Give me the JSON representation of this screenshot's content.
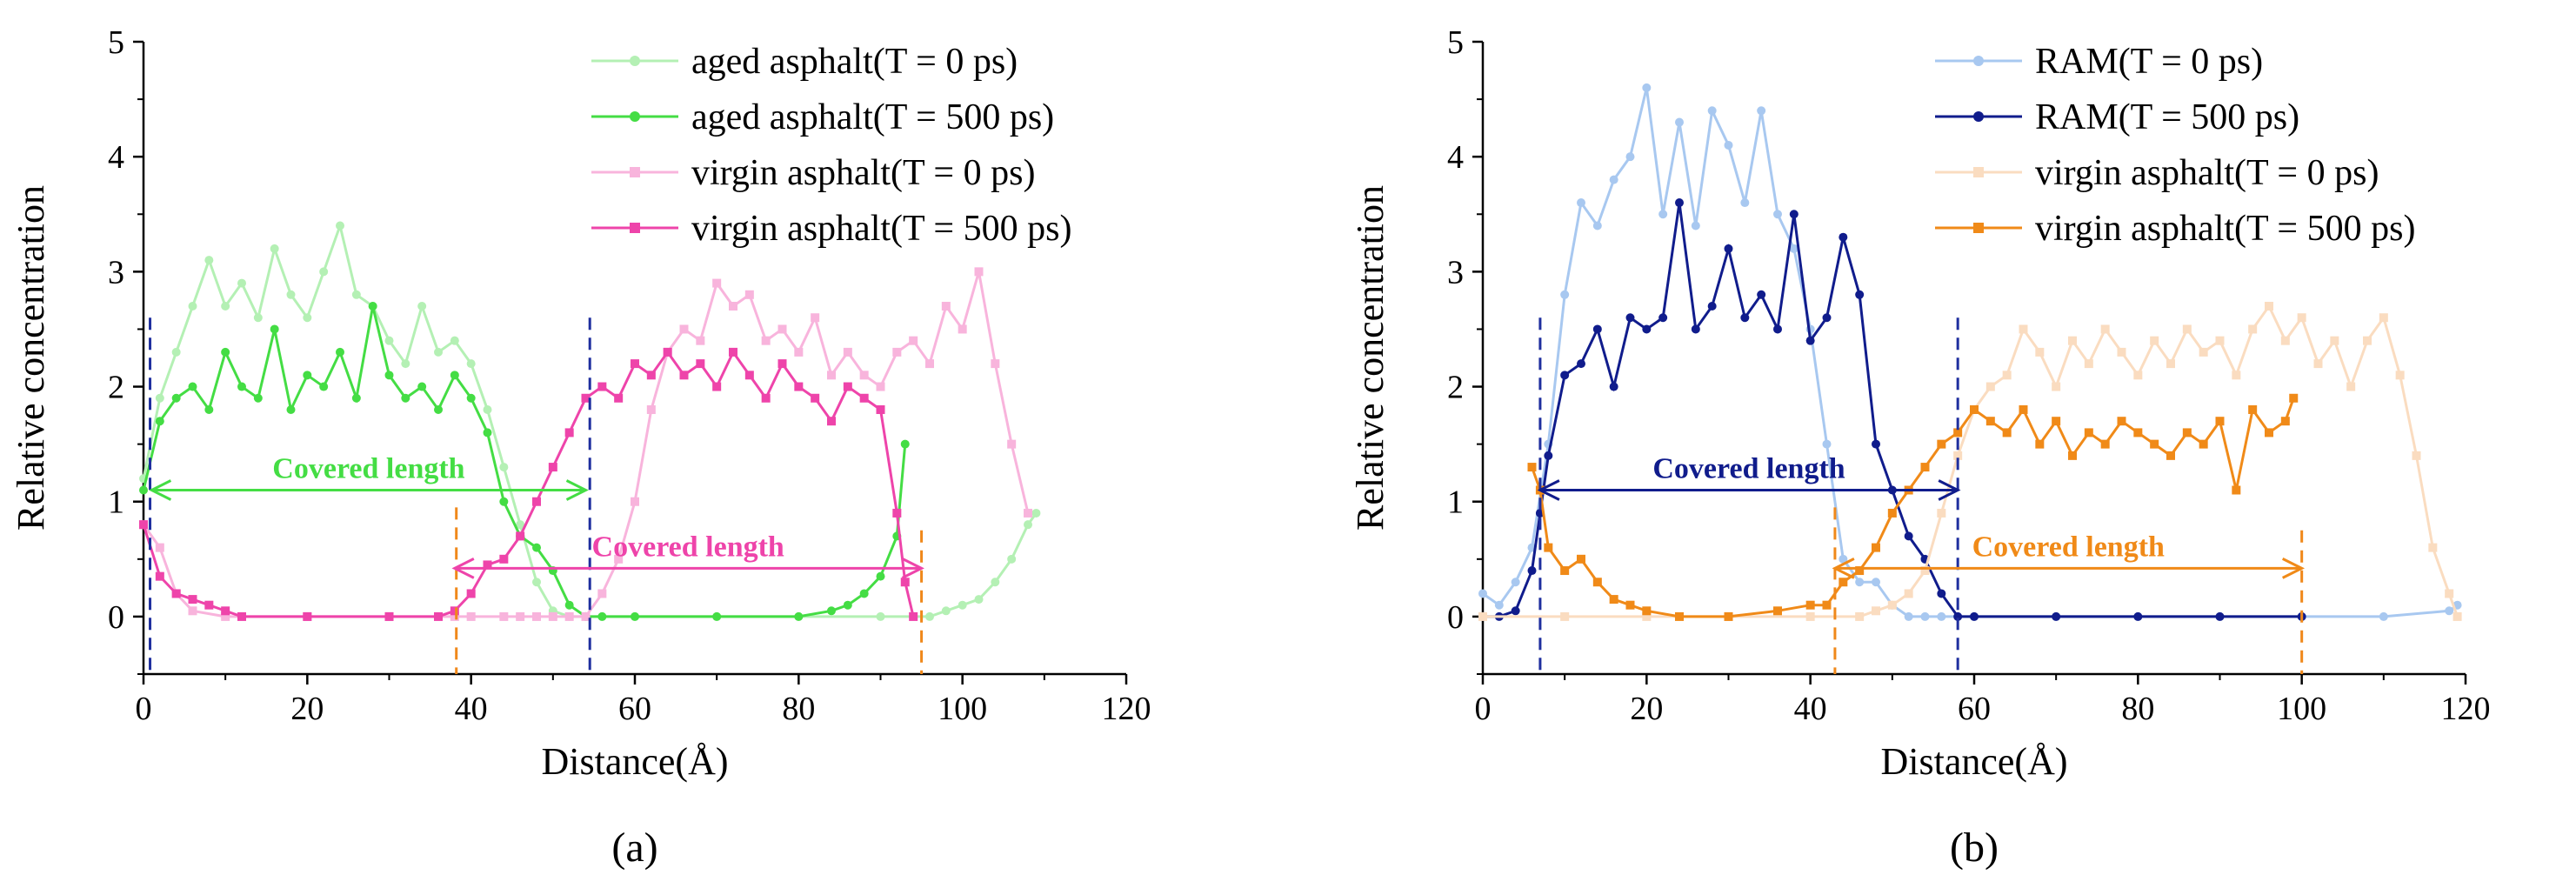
{
  "chart_data": [
    {
      "type": "line",
      "panel_label": "(a)",
      "xlabel": "Distance(Å)",
      "ylabel": "Relative concentration",
      "xlim": [
        0,
        120
      ],
      "ylim": [
        -0.5,
        5
      ],
      "xticks": [
        0,
        20,
        40,
        60,
        80,
        100,
        120
      ],
      "yticks": [
        0,
        1,
        2,
        3,
        4,
        5
      ],
      "legend_position": "top-right",
      "series": [
        {
          "name": "aged asphalt(T = 0 ps)",
          "color": "#b4f0b4",
          "marker": "circle",
          "x": [
            0,
            2,
            4,
            6,
            8,
            10,
            12,
            14,
            16,
            18,
            20,
            22,
            24,
            26,
            28,
            30,
            32,
            34,
            36,
            38,
            40,
            42,
            44,
            46,
            48,
            50,
            52,
            54,
            56,
            60,
            70,
            80,
            90,
            96,
            98,
            100,
            102,
            104,
            106,
            108,
            109
          ],
          "y": [
            1.2,
            1.9,
            2.3,
            2.7,
            3.1,
            2.7,
            2.9,
            2.6,
            3.2,
            2.8,
            2.6,
            3.0,
            3.4,
            2.8,
            2.7,
            2.4,
            2.2,
            2.7,
            2.3,
            2.4,
            2.2,
            1.8,
            1.3,
            0.8,
            0.3,
            0.05,
            0,
            0,
            0,
            0,
            0,
            0,
            0,
            0,
            0.05,
            0.1,
            0.15,
            0.3,
            0.5,
            0.8,
            0.9
          ]
        },
        {
          "name": "aged asphalt(T = 500 ps)",
          "color": "#44dd44",
          "marker": "circle",
          "x": [
            0,
            2,
            4,
            6,
            8,
            10,
            12,
            14,
            16,
            18,
            20,
            22,
            24,
            26,
            28,
            30,
            32,
            34,
            36,
            38,
            40,
            42,
            44,
            46,
            48,
            50,
            52,
            54,
            56,
            60,
            70,
            80,
            84,
            86,
            88,
            90,
            92,
            93
          ],
          "y": [
            1.1,
            1.7,
            1.9,
            2.0,
            1.8,
            2.3,
            2.0,
            1.9,
            2.5,
            1.8,
            2.1,
            2.0,
            2.3,
            1.9,
            2.7,
            2.1,
            1.9,
            2.0,
            1.8,
            2.1,
            1.9,
            1.6,
            1.0,
            0.7,
            0.6,
            0.4,
            0.1,
            0,
            0,
            0,
            0,
            0,
            0.05,
            0.1,
            0.2,
            0.35,
            0.7,
            1.5
          ]
        },
        {
          "name": "virgin asphalt(T = 0 ps)",
          "color": "#f8b4dc",
          "marker": "square",
          "x": [
            0,
            2,
            4,
            6,
            10,
            20,
            30,
            38,
            40,
            44,
            46,
            48,
            50,
            52,
            54,
            56,
            58,
            60,
            62,
            64,
            66,
            68,
            70,
            72,
            74,
            76,
            78,
            80,
            82,
            84,
            86,
            88,
            90,
            92,
            94,
            96,
            98,
            100,
            102,
            104,
            106,
            108
          ],
          "y": [
            0.8,
            0.6,
            0.2,
            0.05,
            0,
            0,
            0,
            0,
            0,
            0,
            0,
            0,
            0,
            0,
            0,
            0.2,
            0.5,
            1.0,
            1.8,
            2.3,
            2.5,
            2.4,
            2.9,
            2.7,
            2.8,
            2.4,
            2.5,
            2.3,
            2.6,
            2.1,
            2.3,
            2.1,
            2.0,
            2.3,
            2.4,
            2.2,
            2.7,
            2.5,
            3.0,
            2.2,
            1.5,
            0.9
          ]
        },
        {
          "name": "virgin asphalt(T = 500 ps)",
          "color": "#ee44aa",
          "marker": "square",
          "x": [
            0,
            2,
            4,
            6,
            8,
            10,
            12,
            20,
            30,
            36,
            38,
            40,
            42,
            44,
            46,
            48,
            50,
            52,
            54,
            56,
            58,
            60,
            62,
            64,
            66,
            68,
            70,
            72,
            74,
            76,
            78,
            80,
            82,
            84,
            86,
            88,
            90,
            92,
            93,
            94
          ],
          "y": [
            0.8,
            0.35,
            0.2,
            0.15,
            0.1,
            0.05,
            0,
            0,
            0,
            0,
            0.05,
            0.2,
            0.45,
            0.5,
            0.7,
            1.0,
            1.3,
            1.6,
            1.9,
            2.0,
            1.9,
            2.2,
            2.1,
            2.3,
            2.1,
            2.2,
            2.0,
            2.3,
            2.1,
            1.9,
            2.2,
            2.0,
            1.9,
            1.7,
            2.0,
            1.9,
            1.8,
            0.9,
            0.3,
            0
          ]
        }
      ],
      "annotations": [
        {
          "text": "Covered length",
          "color": "#44dd44",
          "x_from": 1,
          "x_to": 54,
          "y": 1.1
        },
        {
          "text": "Covered length",
          "color": "#ee44aa",
          "x_from": 38,
          "x_to": 95,
          "y": 0.42
        }
      ],
      "vlines": [
        {
          "x": 0.8,
          "y_top": 2.6,
          "color": "#1f2f9f"
        },
        {
          "x": 54.5,
          "y_top": 2.6,
          "color": "#1f2f9f"
        },
        {
          "x": 38.2,
          "y_top": 0.95,
          "color": "#f0881a"
        },
        {
          "x": 95,
          "y_top": 0.75,
          "color": "#f0881a"
        }
      ]
    },
    {
      "type": "line",
      "panel_label": "(b)",
      "xlabel": "Distance(Å)",
      "ylabel": "Relative concentration",
      "xlim": [
        0,
        120
      ],
      "ylim": [
        -0.5,
        5
      ],
      "xticks": [
        0,
        20,
        40,
        60,
        80,
        100,
        120
      ],
      "yticks": [
        0,
        1,
        2,
        3,
        4,
        5
      ],
      "legend_position": "top-right",
      "series": [
        {
          "name": "RAM(T = 0 ps)",
          "color": "#a8c8f0",
          "marker": "circle",
          "x": [
            0,
            2,
            4,
            6,
            8,
            10,
            12,
            14,
            16,
            18,
            20,
            22,
            24,
            26,
            28,
            30,
            32,
            34,
            36,
            38,
            40,
            42,
            44,
            46,
            48,
            50,
            52,
            54,
            56,
            60,
            70,
            80,
            90,
            100,
            110,
            118,
            119
          ],
          "y": [
            0.2,
            0.1,
            0.3,
            0.6,
            1.5,
            2.8,
            3.6,
            3.4,
            3.8,
            4.0,
            4.6,
            3.5,
            4.3,
            3.4,
            4.4,
            4.1,
            3.6,
            4.4,
            3.5,
            3.2,
            2.5,
            1.5,
            0.5,
            0.3,
            0.3,
            0.1,
            0,
            0,
            0,
            0,
            0,
            0,
            0,
            0,
            0,
            0.05,
            0.1
          ]
        },
        {
          "name": "RAM(T = 500 ps)",
          "color": "#101c8c",
          "marker": "circle",
          "x": [
            0,
            2,
            4,
            6,
            7,
            8,
            10,
            12,
            14,
            16,
            18,
            20,
            22,
            24,
            26,
            28,
            30,
            32,
            34,
            36,
            38,
            40,
            42,
            44,
            46,
            48,
            50,
            52,
            54,
            56,
            58,
            60,
            70,
            80,
            90,
            100
          ],
          "y": [
            0,
            0,
            0.05,
            0.4,
            0.9,
            1.4,
            2.1,
            2.2,
            2.5,
            2.0,
            2.6,
            2.5,
            2.6,
            3.6,
            2.5,
            2.7,
            3.2,
            2.6,
            2.8,
            2.5,
            3.5,
            2.4,
            2.6,
            3.3,
            2.8,
            1.5,
            1.1,
            0.7,
            0.5,
            0.2,
            0,
            0,
            0,
            0,
            0,
            0
          ]
        },
        {
          "name": "virgin asphalt(T = 0 ps)",
          "color": "#fadcc0",
          "marker": "square",
          "x": [
            0,
            10,
            20,
            30,
            40,
            46,
            48,
            50,
            52,
            54,
            56,
            58,
            60,
            62,
            64,
            66,
            68,
            70,
            72,
            74,
            76,
            78,
            80,
            82,
            84,
            86,
            88,
            90,
            92,
            94,
            96,
            98,
            100,
            102,
            104,
            106,
            108,
            110,
            112,
            114,
            116,
            118,
            119
          ],
          "y": [
            0,
            0,
            0,
            0,
            0,
            0,
            0.05,
            0.1,
            0.2,
            0.4,
            0.9,
            1.4,
            1.8,
            2.0,
            2.1,
            2.5,
            2.3,
            2.0,
            2.4,
            2.2,
            2.5,
            2.3,
            2.1,
            2.4,
            2.2,
            2.5,
            2.3,
            2.4,
            2.1,
            2.5,
            2.7,
            2.4,
            2.6,
            2.2,
            2.4,
            2.0,
            2.4,
            2.6,
            2.1,
            1.4,
            0.6,
            0.2,
            0
          ]
        },
        {
          "name": "virgin asphalt(T = 500 ps)",
          "color": "#f08a18",
          "marker": "square",
          "x": [
            6,
            7,
            8,
            10,
            12,
            14,
            16,
            18,
            20,
            24,
            30,
            36,
            40,
            42,
            44,
            46,
            48,
            50,
            52,
            54,
            56,
            58,
            60,
            62,
            64,
            66,
            68,
            70,
            72,
            74,
            76,
            78,
            80,
            82,
            84,
            86,
            88,
            90,
            92,
            94,
            96,
            98,
            99
          ],
          "y": [
            1.3,
            1.1,
            0.6,
            0.4,
            0.5,
            0.3,
            0.15,
            0.1,
            0.05,
            0,
            0,
            0.05,
            0.1,
            0.1,
            0.3,
            0.4,
            0.6,
            0.9,
            1.1,
            1.3,
            1.5,
            1.6,
            1.8,
            1.7,
            1.6,
            1.8,
            1.5,
            1.7,
            1.4,
            1.6,
            1.5,
            1.7,
            1.6,
            1.5,
            1.4,
            1.6,
            1.5,
            1.7,
            1.1,
            1.8,
            1.6,
            1.7,
            1.9
          ]
        }
      ],
      "annotations": [
        {
          "text": "Covered length",
          "color": "#101c8c",
          "x_from": 7,
          "x_to": 58,
          "y": 1.1
        },
        {
          "text": "Covered length",
          "color": "#f08a18",
          "x_from": 43,
          "x_to": 100,
          "y": 0.42
        }
      ],
      "vlines": [
        {
          "x": 7,
          "y_top": 2.6,
          "color": "#1f2f9f"
        },
        {
          "x": 58,
          "y_top": 2.6,
          "color": "#1f2f9f"
        },
        {
          "x": 43,
          "y_top": 0.95,
          "color": "#f0881a"
        },
        {
          "x": 100,
          "y_top": 0.75,
          "color": "#f0881a"
        }
      ]
    }
  ]
}
